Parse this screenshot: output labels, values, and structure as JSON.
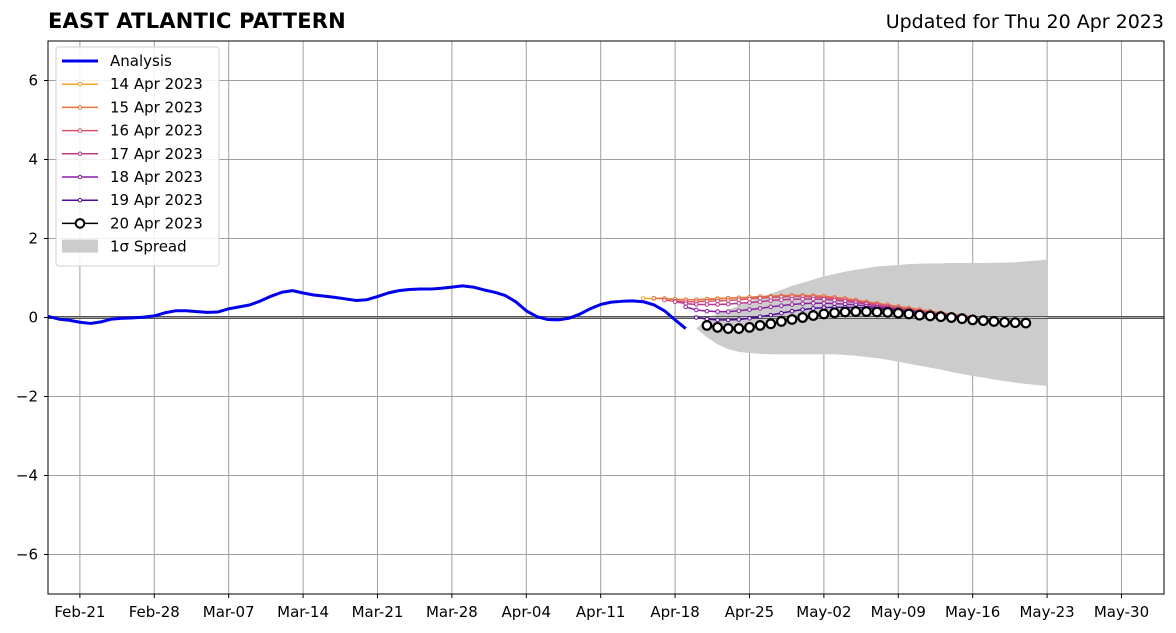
{
  "header": {
    "title": "EAST ATLANTIC PATTERN",
    "updated": "Updated for Thu 20 Apr 2023"
  },
  "chart_data": {
    "type": "line",
    "title": "EAST ATLANTIC PATTERN",
    "subtitle": "Updated for Thu 20 Apr 2023",
    "xlabel": "",
    "ylabel": "",
    "x_start_date": "2023-02-18",
    "x_end_date": "2023-06-03",
    "xlim": [
      "2023-02-18",
      "2023-06-03"
    ],
    "ylim": [
      -7,
      7
    ],
    "grid": true,
    "legend_position": "top-left",
    "x_tick_labels": [
      {
        "date": "2023-02-21",
        "label": "Feb-21"
      },
      {
        "date": "2023-02-28",
        "label": "Feb-28"
      },
      {
        "date": "2023-03-07",
        "label": "Mar-07"
      },
      {
        "date": "2023-03-14",
        "label": "Mar-14"
      },
      {
        "date": "2023-03-21",
        "label": "Mar-21"
      },
      {
        "date": "2023-03-28",
        "label": "Mar-28"
      },
      {
        "date": "2023-04-04",
        "label": "Apr-04"
      },
      {
        "date": "2023-04-11",
        "label": "Apr-11"
      },
      {
        "date": "2023-04-18",
        "label": "Apr-18"
      },
      {
        "date": "2023-04-25",
        "label": "Apr-25"
      },
      {
        "date": "2023-05-02",
        "label": "May-02"
      },
      {
        "date": "2023-05-09",
        "label": "May-09"
      },
      {
        "date": "2023-05-16",
        "label": "May-16"
      },
      {
        "date": "2023-05-23",
        "label": "May-23"
      },
      {
        "date": "2023-05-30",
        "label": "May-30"
      }
    ],
    "y_ticks": [
      -6,
      -4,
      -2,
      0,
      2,
      4,
      6
    ],
    "y_tick_labels": [
      "−6",
      "−4",
      "−2",
      "0",
      "2",
      "4",
      "6"
    ],
    "analysis": {
      "name": "Analysis",
      "color": "#0000ee",
      "start_date": "2023-02-18",
      "values": [
        0.03,
        -0.04,
        -0.07,
        -0.12,
        -0.15,
        -0.11,
        -0.04,
        -0.02,
        -0.01,
        0.01,
        0.04,
        0.12,
        0.17,
        0.17,
        0.15,
        0.13,
        0.14,
        0.22,
        0.27,
        0.32,
        0.42,
        0.54,
        0.64,
        0.68,
        0.62,
        0.57,
        0.54,
        0.51,
        0.47,
        0.43,
        0.45,
        0.53,
        0.62,
        0.68,
        0.71,
        0.72,
        0.72,
        0.74,
        0.77,
        0.8,
        0.77,
        0.7,
        0.64,
        0.56,
        0.4,
        0.17,
        0.02,
        -0.05,
        -0.06,
        -0.02,
        0.08,
        0.22,
        0.33,
        0.39,
        0.41,
        0.42,
        0.4,
        0.32,
        0.17,
        -0.06,
        -0.28
      ]
    },
    "forecasts": [
      {
        "name": "14 Apr 2023",
        "color": "#f5a623",
        "start_date": "2023-04-15",
        "values": [
          0.48,
          0.48,
          0.48,
          0.46,
          0.45,
          0.45,
          0.47,
          0.48,
          0.49,
          0.5,
          0.51,
          0.52,
          0.53,
          0.54,
          0.54,
          0.54,
          0.53,
          0.52,
          0.5,
          0.47,
          0.43,
          0.39,
          0.35,
          0.31,
          0.27,
          0.23,
          0.19,
          0.15,
          0.11,
          0.07,
          0.04,
          0.01
        ]
      },
      {
        "name": "15 Apr 2023",
        "color": "#e6733a",
        "start_date": "2023-04-16",
        "values": [
          0.49,
          0.48,
          0.46,
          0.45,
          0.45,
          0.46,
          0.47,
          0.49,
          0.5,
          0.51,
          0.53,
          0.54,
          0.55,
          0.56,
          0.56,
          0.55,
          0.54,
          0.51,
          0.48,
          0.44,
          0.4,
          0.36,
          0.32,
          0.28,
          0.24,
          0.2,
          0.16,
          0.12,
          0.08,
          0.05,
          0.02
        ]
      },
      {
        "name": "16 Apr 2023",
        "color": "#d8546e",
        "start_date": "2023-04-17",
        "values": [
          0.44,
          0.41,
          0.4,
          0.4,
          0.41,
          0.42,
          0.43,
          0.45,
          0.47,
          0.49,
          0.51,
          0.52,
          0.53,
          0.53,
          0.52,
          0.5,
          0.48,
          0.45,
          0.41,
          0.37,
          0.33,
          0.29,
          0.25,
          0.21,
          0.17,
          0.13,
          0.1,
          0.07,
          0.04,
          0.01
        ]
      },
      {
        "name": "17 Apr 2023",
        "color": "#b8398f",
        "start_date": "2023-04-18",
        "values": [
          0.4,
          0.35,
          0.33,
          0.33,
          0.33,
          0.34,
          0.36,
          0.38,
          0.4,
          0.43,
          0.45,
          0.46,
          0.47,
          0.47,
          0.46,
          0.44,
          0.41,
          0.38,
          0.34,
          0.3,
          0.26,
          0.22,
          0.18,
          0.14,
          0.11,
          0.08,
          0.05,
          0.02,
          0.0
        ]
      },
      {
        "name": "18 Apr 2023",
        "color": "#8c1fa6",
        "start_date": "2023-04-19",
        "values": [
          0.27,
          0.19,
          0.16,
          0.15,
          0.15,
          0.17,
          0.2,
          0.23,
          0.27,
          0.3,
          0.33,
          0.35,
          0.36,
          0.36,
          0.35,
          0.34,
          0.32,
          0.29,
          0.26,
          0.23,
          0.2,
          0.16,
          0.13,
          0.1,
          0.07,
          0.05,
          0.02,
          0.0
        ]
      },
      {
        "name": "19 Apr 2023",
        "color": "#4d0a96",
        "start_date": "2023-04-20",
        "values": [
          0.0,
          -0.04,
          -0.06,
          -0.06,
          -0.05,
          -0.02,
          0.02,
          0.06,
          0.11,
          0.16,
          0.2,
          0.23,
          0.25,
          0.26,
          0.26,
          0.25,
          0.24,
          0.22,
          0.2,
          0.17,
          0.14,
          0.11,
          0.08,
          0.05,
          0.03,
          0.01,
          -0.01
        ]
      }
    ],
    "current_forecast": {
      "name": "20 Apr 2023",
      "color": "#000000",
      "start_date": "2023-04-21",
      "values": [
        -0.2,
        -0.25,
        -0.28,
        -0.28,
        -0.25,
        -0.2,
        -0.16,
        -0.1,
        -0.05,
        0.0,
        0.05,
        0.09,
        0.12,
        0.14,
        0.15,
        0.15,
        0.14,
        0.13,
        0.11,
        0.09,
        0.06,
        0.04,
        0.02,
        0.0,
        -0.03,
        -0.06,
        -0.08,
        -0.1,
        -0.12,
        -0.13,
        -0.14
      ]
    },
    "spread": {
      "name": "1σ Spread",
      "color": "#cccccc",
      "start_date": "2023-04-20",
      "upper": [
        -0.28,
        -0.05,
        0.1,
        0.2,
        0.3,
        0.4,
        0.5,
        0.6,
        0.7,
        0.8,
        0.88,
        0.96,
        1.04,
        1.1,
        1.16,
        1.21,
        1.25,
        1.29,
        1.31,
        1.33,
        1.35,
        1.36,
        1.37,
        1.37,
        1.38,
        1.38,
        1.38,
        1.38,
        1.39,
        1.39,
        1.4,
        1.42,
        1.44,
        1.47
      ],
      "lower": [
        -0.28,
        -0.5,
        -0.68,
        -0.8,
        -0.87,
        -0.9,
        -0.92,
        -0.93,
        -0.93,
        -0.93,
        -0.93,
        -0.93,
        -0.93,
        -0.93,
        -0.95,
        -0.97,
        -1.0,
        -1.03,
        -1.07,
        -1.12,
        -1.17,
        -1.22,
        -1.27,
        -1.32,
        -1.38,
        -1.43,
        -1.48,
        -1.52,
        -1.57,
        -1.61,
        -1.65,
        -1.68,
        -1.71,
        -1.73
      ]
    },
    "legend": [
      {
        "label": "Analysis",
        "color": "#0000ee",
        "style": "thick-line"
      },
      {
        "label": "14 Apr 2023",
        "color": "#f5a623",
        "style": "line-dots"
      },
      {
        "label": "15 Apr 2023",
        "color": "#e6733a",
        "style": "line-dots"
      },
      {
        "label": "16 Apr 2023",
        "color": "#d8546e",
        "style": "line-dots"
      },
      {
        "label": "17 Apr 2023",
        "color": "#b8398f",
        "style": "line-dots"
      },
      {
        "label": "18 Apr 2023",
        "color": "#8c1fa6",
        "style": "line-dots"
      },
      {
        "label": "19 Apr 2023",
        "color": "#4d0a96",
        "style": "line-dots"
      },
      {
        "label": "20 Apr 2023",
        "color": "#000000",
        "style": "line-circles"
      },
      {
        "label": "1σ Spread",
        "color": "#cccccc",
        "style": "patch"
      }
    ]
  }
}
